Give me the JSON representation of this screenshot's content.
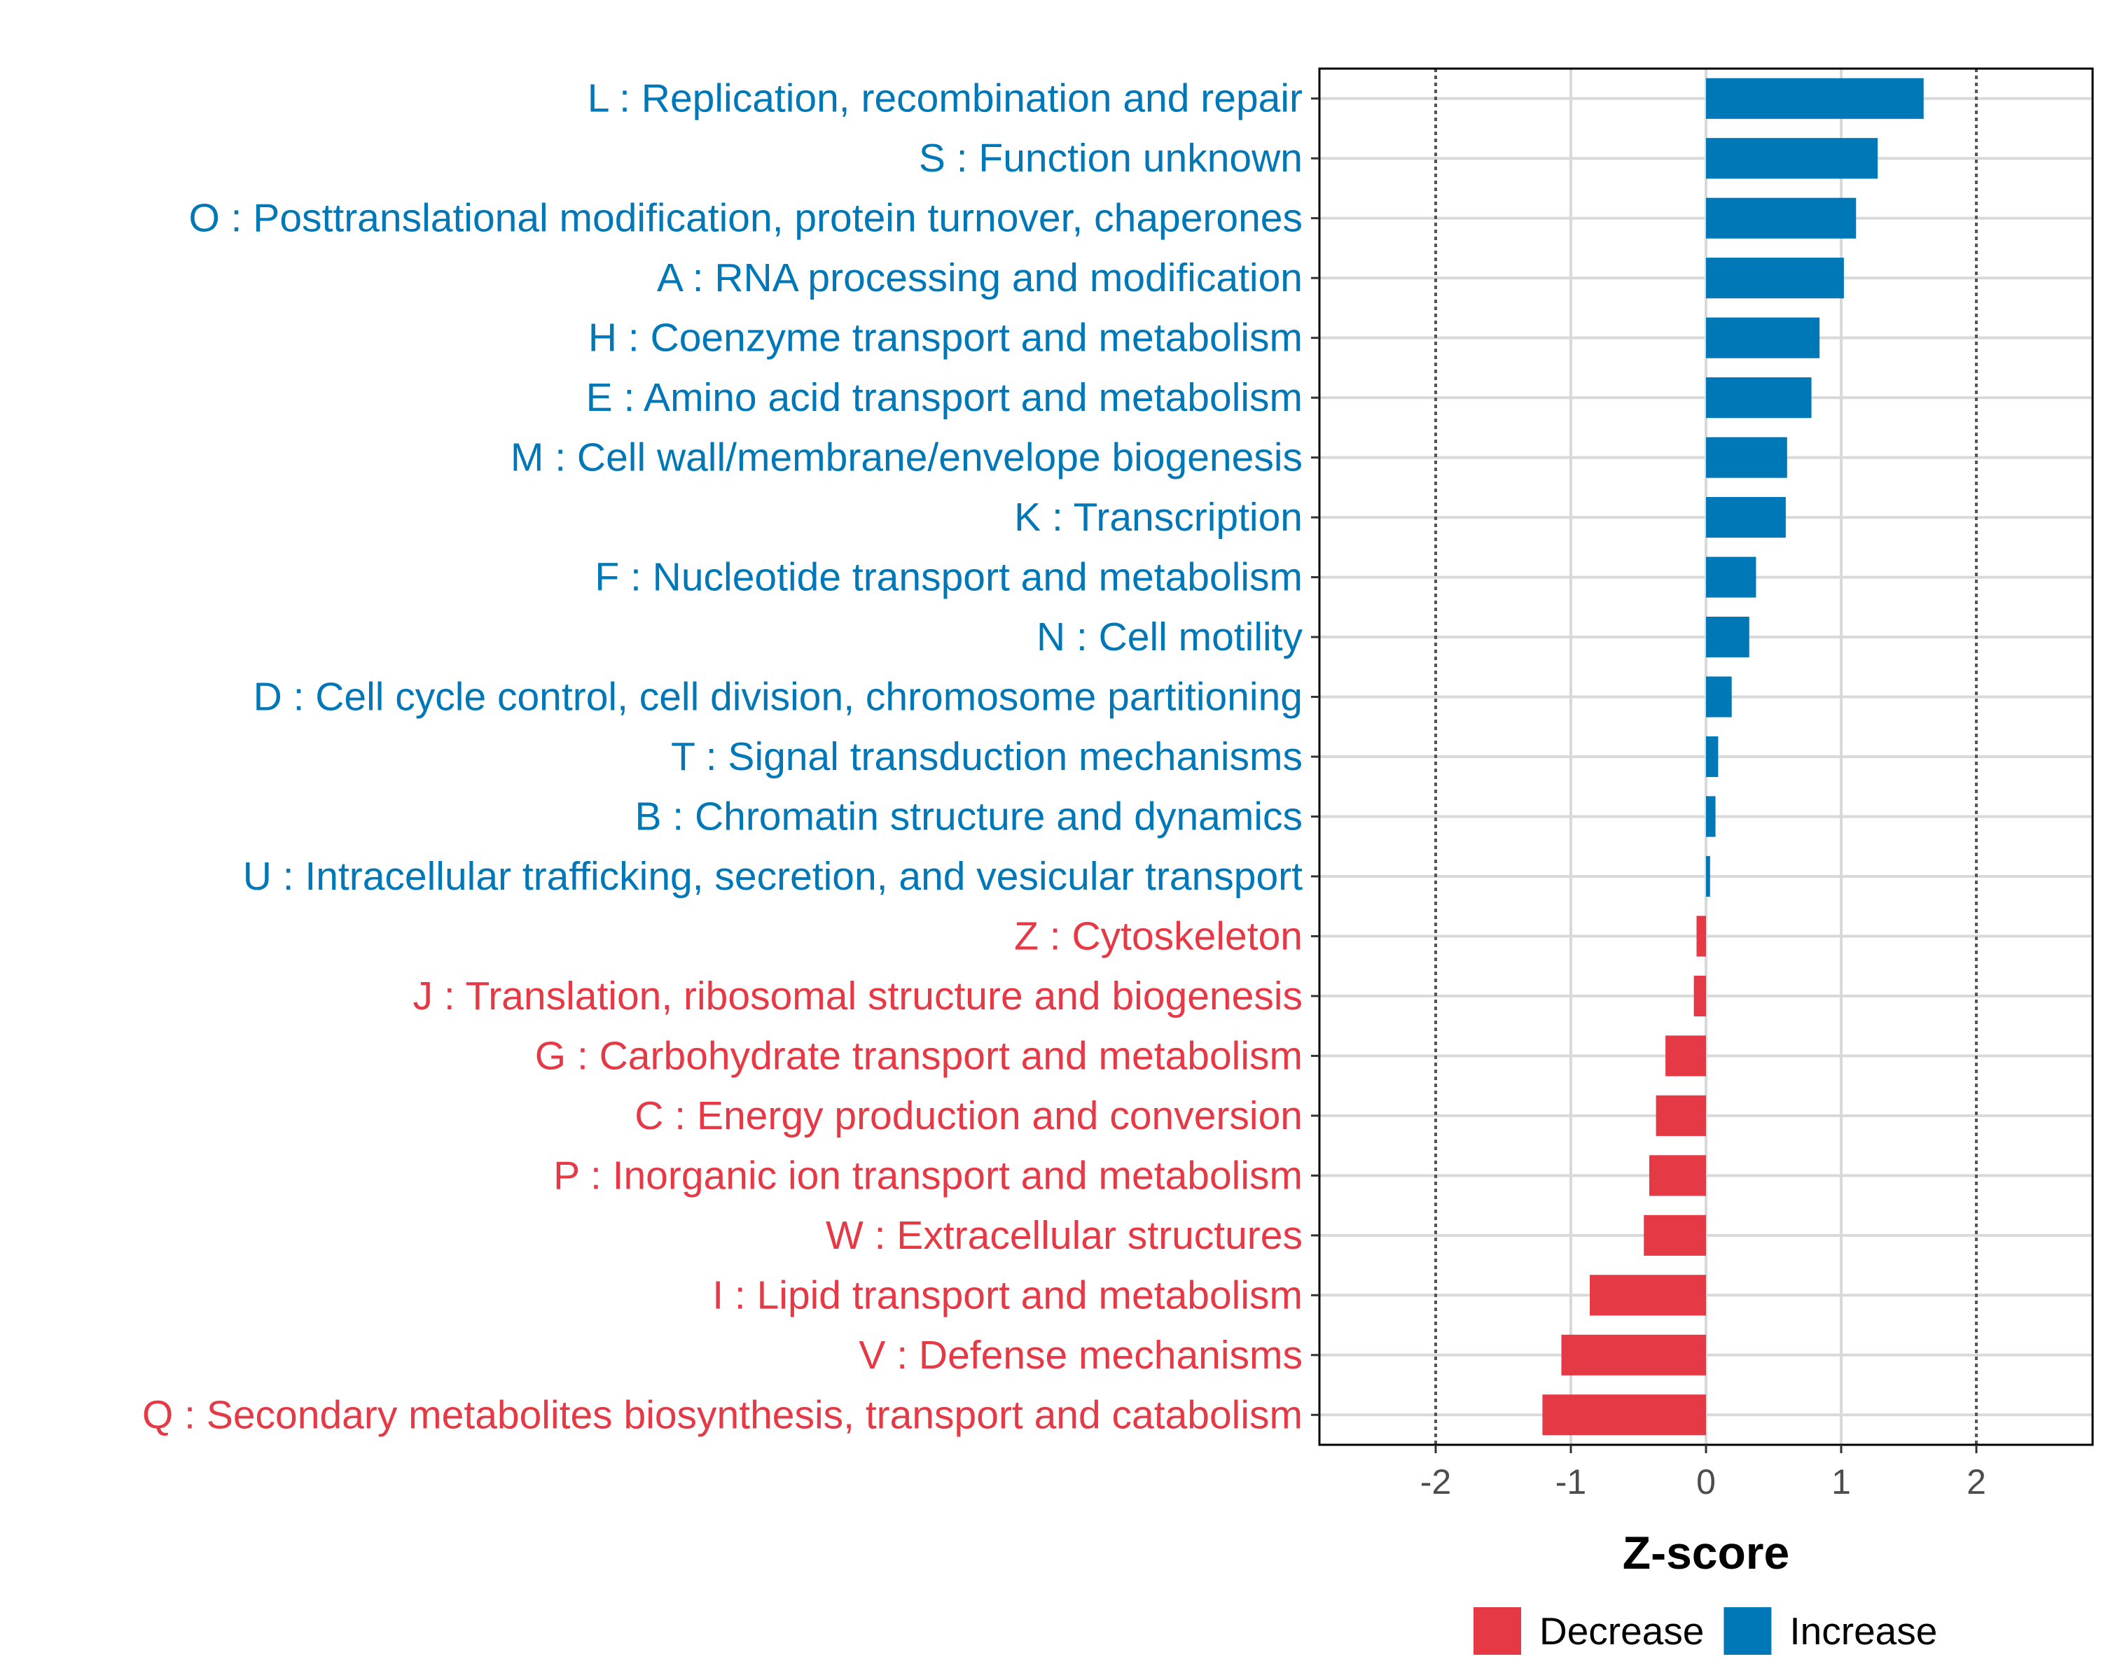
{
  "chart_data": {
    "type": "bar",
    "orientation": "horizontal",
    "title": "",
    "xlabel": "Z-score",
    "ylabel": "",
    "xlim": [
      -2.86,
      2.86
    ],
    "xticks": [
      -2,
      -1,
      0,
      1,
      2
    ],
    "reference_lines": [
      -2,
      2
    ],
    "grid": true,
    "colors": {
      "Decrease": "#e63946",
      "Increase": "#0077b6"
    },
    "categories": [
      "L : Replication, recombination and repair",
      "S : Function unknown",
      "O : Posttranslational modification, protein turnover, chaperones",
      "A : RNA processing and modification",
      "H : Coenzyme transport and metabolism",
      "E : Amino acid transport and metabolism",
      "M : Cell wall/membrane/envelope biogenesis",
      "K : Transcription",
      "F : Nucleotide transport and metabolism",
      "N : Cell motility",
      "D : Cell cycle control, cell division, chromosome partitioning",
      "T : Signal transduction mechanisms",
      "B : Chromatin structure and dynamics",
      "U : Intracellular trafficking, secretion, and vesicular transport",
      "Z : Cytoskeleton",
      "J : Translation, ribosomal structure and biogenesis",
      "G : Carbohydrate transport and metabolism",
      "C : Energy production and conversion",
      "P : Inorganic ion transport and metabolism",
      "W : Extracellular structures",
      "I : Lipid transport and metabolism",
      "V : Defense mechanisms",
      "Q : Secondary metabolites biosynthesis, transport and catabolism"
    ],
    "values": [
      1.61,
      1.27,
      1.11,
      1.02,
      0.84,
      0.78,
      0.6,
      0.59,
      0.37,
      0.32,
      0.19,
      0.09,
      0.07,
      0.03,
      -0.07,
      -0.09,
      -0.3,
      -0.37,
      -0.42,
      -0.46,
      -0.86,
      -1.07,
      -1.21
    ],
    "groups": [
      "Increase",
      "Increase",
      "Increase",
      "Increase",
      "Increase",
      "Increase",
      "Increase",
      "Increase",
      "Increase",
      "Increase",
      "Increase",
      "Increase",
      "Increase",
      "Increase",
      "Decrease",
      "Decrease",
      "Decrease",
      "Decrease",
      "Decrease",
      "Decrease",
      "Decrease",
      "Decrease",
      "Decrease"
    ],
    "legend": {
      "position": "bottom-right",
      "entries": [
        {
          "label": "Decrease",
          "color": "#e63946"
        },
        {
          "label": "Increase",
          "color": "#0077b6"
        }
      ]
    }
  }
}
